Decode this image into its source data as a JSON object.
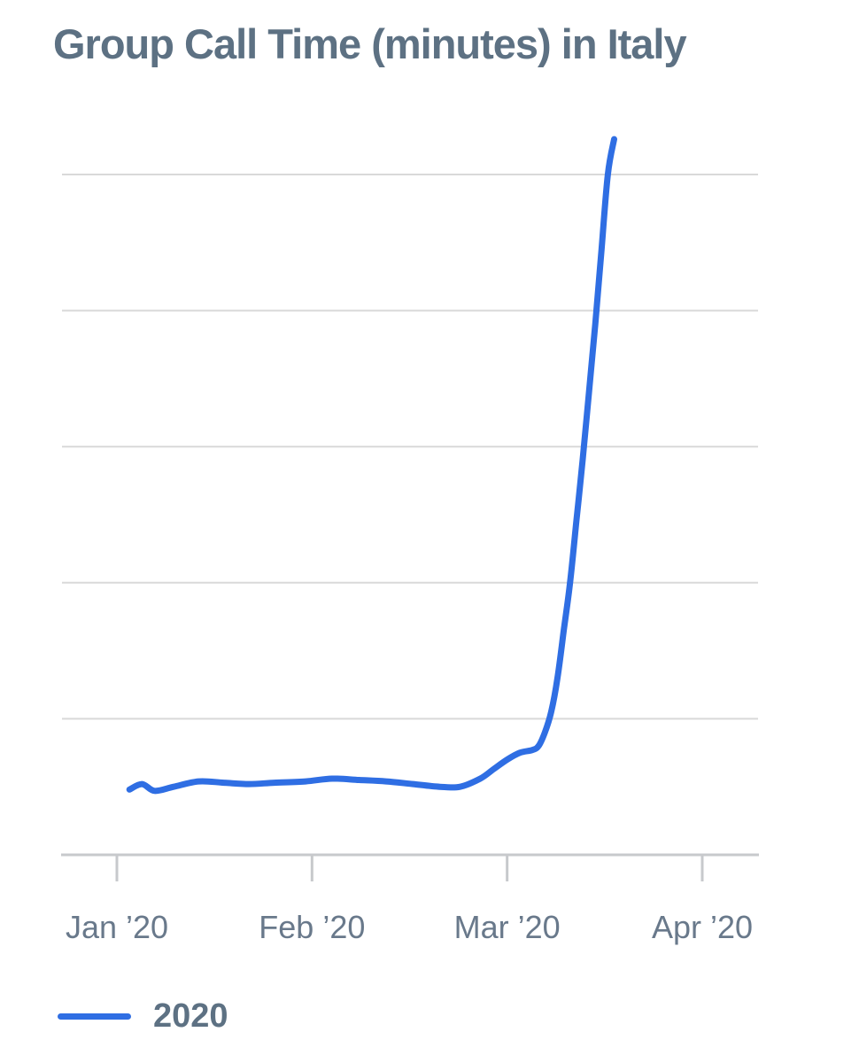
{
  "header": {
    "title": "Group Call Time (minutes) in Italy"
  },
  "colors": {
    "title": "#5d7183",
    "tick_label": "#69798b",
    "gridline": "#d9d9d9",
    "axis": "#c7c9cc",
    "series_2020": "#2f6ee3",
    "background": "#ffffff"
  },
  "chart_data": {
    "type": "line",
    "title": "Group Call Time (minutes) in Italy",
    "xlabel": "",
    "ylabel": "",
    "x_tick_labels": [
      "Jan ’20",
      "Feb ’20",
      "Mar ’20",
      "Apr ’20"
    ],
    "y_axis_note": "no numeric labels shown; 5 horizontal gridlines, 1 relative unit apart",
    "ylim": [
      0,
      5.33
    ],
    "gridline_values": [
      1,
      2,
      3,
      4,
      5
    ],
    "grid": "horizontal-only",
    "legend_position": "bottom-left",
    "series": [
      {
        "name": "2020",
        "color": "#2f6ee3",
        "points": [
          {
            "date": "Jan 3",
            "value": 0.48
          },
          {
            "date": "Jan 5",
            "value": 0.52
          },
          {
            "date": "Jan 7",
            "value": 0.47
          },
          {
            "date": "Jan 10",
            "value": 0.5
          },
          {
            "date": "Jan 14",
            "value": 0.54
          },
          {
            "date": "Jan 18",
            "value": 0.53
          },
          {
            "date": "Jan 22",
            "value": 0.52
          },
          {
            "date": "Jan 26",
            "value": 0.53
          },
          {
            "date": "Jan 31",
            "value": 0.54
          },
          {
            "date": "Feb 4",
            "value": 0.56
          },
          {
            "date": "Feb 8",
            "value": 0.55
          },
          {
            "date": "Feb 12",
            "value": 0.54
          },
          {
            "date": "Feb 16",
            "value": 0.52
          },
          {
            "date": "Feb 20",
            "value": 0.5
          },
          {
            "date": "Feb 23",
            "value": 0.5
          },
          {
            "date": "Feb 26",
            "value": 0.56
          },
          {
            "date": "Feb 28",
            "value": 0.63
          },
          {
            "date": "Mar 1",
            "value": 0.7
          },
          {
            "date": "Mar 3",
            "value": 0.75
          },
          {
            "date": "Mar 5",
            "value": 0.77
          },
          {
            "date": "Mar 6",
            "value": 0.8
          },
          {
            "date": "Mar 7",
            "value": 0.9
          },
          {
            "date": "Mar 8",
            "value": 1.05
          },
          {
            "date": "Mar 9",
            "value": 1.3
          },
          {
            "date": "Mar 10",
            "value": 1.65
          },
          {
            "date": "Mar 11",
            "value": 2.0
          },
          {
            "date": "Mar 12",
            "value": 2.45
          },
          {
            "date": "Mar 13",
            "value": 2.9
          },
          {
            "date": "Mar 14",
            "value": 3.4
          },
          {
            "date": "Mar 15",
            "value": 3.9
          },
          {
            "date": "Mar 16",
            "value": 4.45
          },
          {
            "date": "Mar 17",
            "value": 5.0
          },
          {
            "date": "Mar 18",
            "value": 5.26
          }
        ]
      }
    ],
    "legend": {
      "entries": [
        {
          "label": "2020",
          "color": "#2f6ee3"
        }
      ]
    }
  }
}
